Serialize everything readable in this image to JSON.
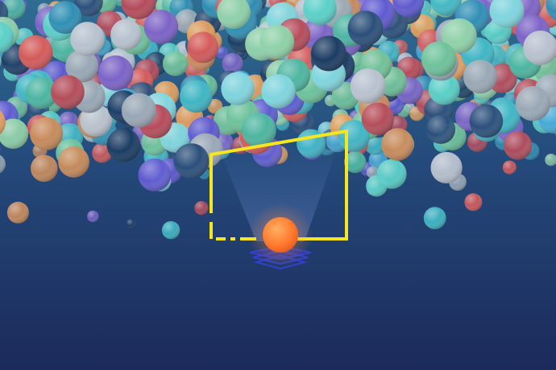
{
  "scene": {
    "description_visible_text": "",
    "palette": {
      "bg_top": "#2f6d92",
      "bg_mid": "#24497a",
      "bg_bottom": "#1b2a5a",
      "ball_colors": [
        "#3fb7c5",
        "#5ad0c8",
        "#46a9d6",
        "#2f8fb5",
        "#8fd1a9",
        "#6ec29a",
        "#7b63c7",
        "#5f5ad1",
        "#d55a5a",
        "#b64b5a",
        "#e7a05b",
        "#c98b5b",
        "#b8c2cf",
        "#9aa8b6",
        "#2b4f7a",
        "#1c3c63",
        "#4bb6a0",
        "#7fd6de"
      ],
      "frame_color": "#f5e61f",
      "glow_ball": "#ff7a2e",
      "pedestal": "#3340c9"
    },
    "icons": [
      "frame-outline-icon",
      "glowing-orb-icon",
      "pedestal-icon"
    ]
  }
}
